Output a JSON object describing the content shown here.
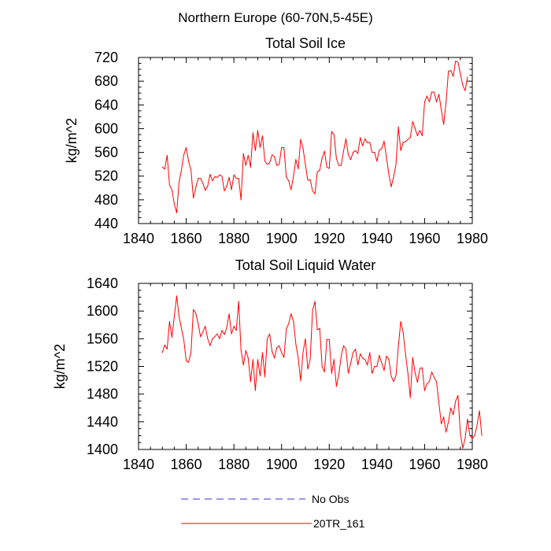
{
  "figure": {
    "suptitle": "Northern Europe (60-70N,5-45E)",
    "legend": [
      {
        "label": "No Obs",
        "color": "#3333cc",
        "dash": true
      },
      {
        "label": "20TR_161",
        "color": "#ff0000",
        "dash": false
      }
    ]
  },
  "chart_data": [
    {
      "type": "line",
      "title": "Total Soil Ice",
      "xlabel": "",
      "ylabel": "kg/m^2",
      "xlim": [
        1840,
        1980
      ],
      "ylim": [
        440,
        720
      ],
      "xticks": [
        1840,
        1860,
        1880,
        1900,
        1920,
        1940,
        1960,
        1980
      ],
      "yticks": [
        440,
        480,
        520,
        560,
        600,
        640,
        680,
        720
      ],
      "x_start": 1850,
      "series": [
        {
          "name": "20TR_161",
          "color": "#ff0000",
          "values": [
            535,
            532,
            555,
            505,
            497,
            473,
            458,
            510,
            530,
            556,
            568,
            545,
            530,
            483,
            500,
            516,
            516,
            508,
            496,
            503,
            523,
            512,
            519,
            518,
            522,
            520,
            495,
            503,
            518,
            497,
            522,
            516,
            516,
            480,
            558,
            538,
            555,
            535,
            593,
            563,
            597,
            568,
            588,
            545,
            540,
            542,
            556,
            553,
            538,
            540,
            568,
            568,
            518,
            512,
            497,
            520,
            548,
            532,
            582,
            567,
            539,
            513,
            514,
            495,
            490,
            527,
            530,
            550,
            562,
            535,
            533,
            595,
            590,
            550,
            538,
            538,
            562,
            583,
            556,
            548,
            560,
            563,
            558,
            585,
            571,
            583,
            576,
            577,
            560,
            560,
            545,
            564,
            566,
            579,
            552,
            523,
            502,
            518,
            540,
            603,
            563,
            577,
            578,
            582,
            585,
            612,
            600,
            588,
            597,
            588,
            645,
            655,
            645,
            662,
            661,
            645,
            658,
            632,
            607,
            645,
            697,
            698,
            688,
            714,
            712,
            693,
            673,
            664,
            687
          ]
        }
      ]
    },
    {
      "type": "line",
      "title": "Total Soil Liquid Water",
      "xlabel": "",
      "ylabel": "kg/m^2",
      "xlim": [
        1840,
        1980
      ],
      "ylim": [
        1400,
        1640
      ],
      "xticks": [
        1840,
        1860,
        1880,
        1900,
        1920,
        1940,
        1960,
        1980
      ],
      "yticks": [
        1400,
        1440,
        1480,
        1520,
        1560,
        1600,
        1640
      ],
      "x_start": 1850,
      "series": [
        {
          "name": "20TR_161",
          "color": "#ff0000",
          "values": [
            1540,
            1551,
            1545,
            1585,
            1562,
            1592,
            1622,
            1592,
            1575,
            1558,
            1528,
            1526,
            1540,
            1602,
            1597,
            1582,
            1563,
            1570,
            1578,
            1560,
            1550,
            1560,
            1563,
            1567,
            1560,
            1572,
            1566,
            1576,
            1596,
            1567,
            1578,
            1572,
            1614,
            1543,
            1522,
            1543,
            1532,
            1498,
            1530,
            1485,
            1530,
            1506,
            1540,
            1505,
            1560,
            1567,
            1542,
            1532,
            1547,
            1550,
            1540,
            1533,
            1574,
            1582,
            1596,
            1585,
            1552,
            1532,
            1499,
            1540,
            1560,
            1516,
            1530,
            1601,
            1614,
            1573,
            1575,
            1520,
            1512,
            1559,
            1559,
            1510,
            1530,
            1491,
            1508,
            1535,
            1550,
            1545,
            1510,
            1525,
            1540,
            1545,
            1522,
            1538,
            1532,
            1530,
            1522,
            1540,
            1510,
            1520,
            1520,
            1536,
            1525,
            1514,
            1535,
            1530,
            1506,
            1498,
            1507,
            1549,
            1585,
            1569,
            1538,
            1510,
            1475,
            1533,
            1511,
            1497,
            1517,
            1518,
            1485,
            1495,
            1498,
            1512,
            1504,
            1498,
            1467,
            1437,
            1447,
            1425,
            1440,
            1460,
            1450,
            1470,
            1478,
            1423,
            1402,
            1416,
            1444,
            1420,
            1416,
            1420,
            1435,
            1456,
            1420
          ]
        }
      ]
    }
  ]
}
